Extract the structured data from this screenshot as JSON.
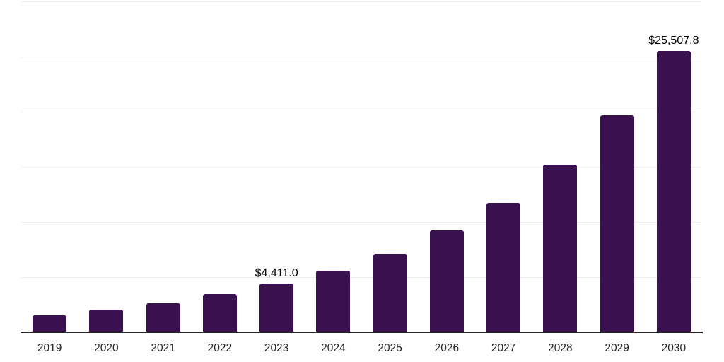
{
  "chart_data": {
    "type": "bar",
    "title": "",
    "xlabel": "",
    "ylabel": "",
    "categories": [
      "2019",
      "2020",
      "2021",
      "2022",
      "2023",
      "2024",
      "2025",
      "2026",
      "2027",
      "2028",
      "2029",
      "2030"
    ],
    "values": [
      1550,
      2030,
      2610,
      3440,
      4411.0,
      5600,
      7110,
      9250,
      11730,
      15210,
      19680,
      25507.8
    ],
    "data_labels": [
      "",
      "",
      "",
      "",
      "$4,411.0",
      "",
      "",
      "",
      "",
      "",
      "",
      "$25,507.8"
    ],
    "labeled_points": [
      {
        "category": "2023",
        "value": 4411.0,
        "label": "$4,411.0"
      },
      {
        "category": "2030",
        "value": 25507.8,
        "label": "$25,507.8"
      }
    ],
    "ylim": [
      0,
      30000
    ],
    "gridline_step": 5000,
    "grid": "horizontal",
    "y_tick_labels_shown": false,
    "legend": "none",
    "colors": {
      "bar": "#38114E",
      "axis_line": "#262626",
      "gridline": "#ededed",
      "data_label": "#000000",
      "tick_label": "#262626",
      "background": "#ffffff"
    }
  }
}
